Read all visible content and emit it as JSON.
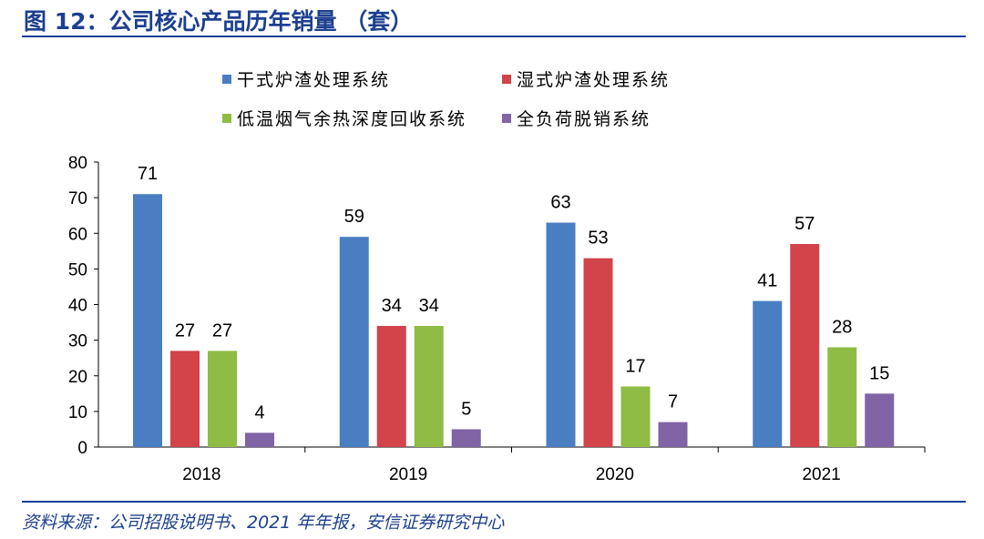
{
  "title": "图 12：公司核心产品历年销量 （套）",
  "source": "资料来源：公司招股说明书、2021 年年报，安信证券研究中心",
  "chart_data": {
    "type": "bar",
    "title": "",
    "xlabel": "",
    "ylabel": "",
    "categories": [
      "2018",
      "2019",
      "2020",
      "2021"
    ],
    "ylim": [
      0,
      80
    ],
    "yticks": [
      "0",
      "10",
      "20",
      "30",
      "40",
      "50",
      "60",
      "70",
      "80"
    ],
    "grid": false,
    "legend_position": "top",
    "series": [
      {
        "name": "干式炉渣处理系统",
        "color": "#4a7ec2",
        "values": [
          71,
          59,
          63,
          41
        ]
      },
      {
        "name": "湿式炉渣处理系统",
        "color": "#d2434a",
        "values": [
          27,
          34,
          53,
          57
        ]
      },
      {
        "name": "低温烟气余热深度回收系统",
        "color": "#8fbc45",
        "values": [
          27,
          34,
          17,
          28
        ]
      },
      {
        "name": "全负荷脱销系统",
        "color": "#8064a6",
        "values": [
          4,
          5,
          7,
          15
        ]
      }
    ]
  }
}
